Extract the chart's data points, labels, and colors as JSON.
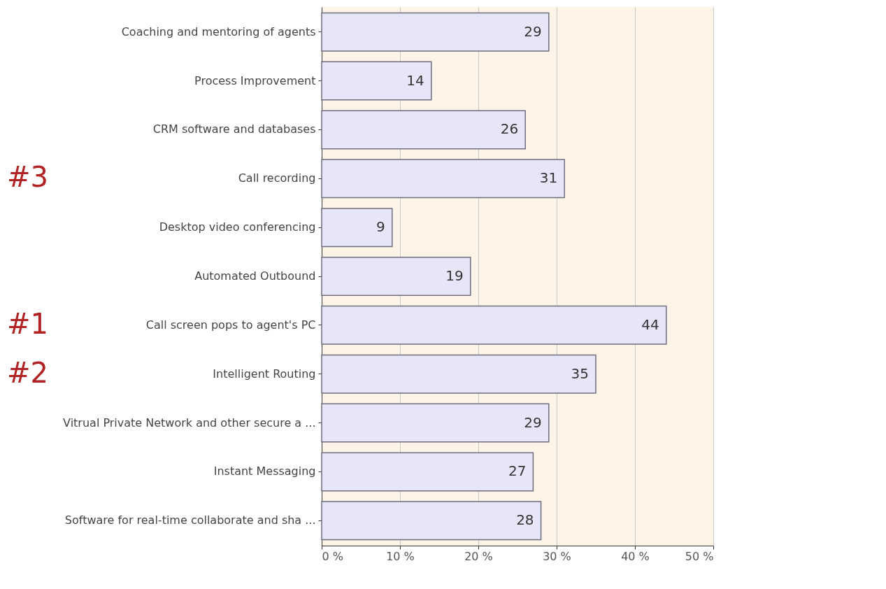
{
  "chart_data": {
    "type": "bar",
    "orientation": "horizontal",
    "categories": [
      "Coaching and mentoring of agents",
      "Process Improvement",
      "CRM software and databases",
      "Call recording",
      "Desktop video conferencing",
      "Automated Outbound",
      "Call screen pops to agent's PC",
      "Intelligent Routing",
      "Vitrual Private Network and other secure a ...",
      "Instant Messaging",
      "Software for real-time collaborate and sha ..."
    ],
    "values": [
      29,
      14,
      26,
      31,
      9,
      19,
      44,
      35,
      29,
      27,
      28
    ],
    "color": "#e6e6f8",
    "xlim": [
      0,
      50
    ],
    "xticks": [
      {
        "value": 0,
        "label": "0 %"
      },
      {
        "value": 10,
        "label": "10 %"
      },
      {
        "value": 20,
        "label": "20 %"
      },
      {
        "value": 30,
        "label": "30 %"
      },
      {
        "value": 40,
        "label": "40 %"
      },
      {
        "value": 50,
        "label": "50 %"
      }
    ],
    "grid": "x",
    "data_labels": true,
    "annotations": [
      "#3",
      "#1",
      "#2"
    ]
  }
}
